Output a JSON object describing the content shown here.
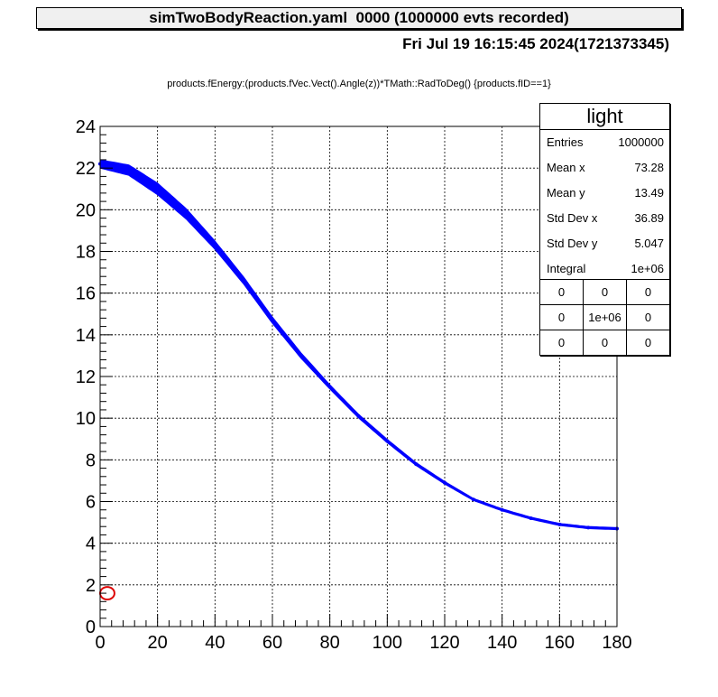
{
  "header": {
    "title": "simTwoBodyReaction.yaml  0000 (1000000 evts recorded)",
    "date": "Fri Jul 19 16:15:45 2024(1721373345)",
    "subtitle": "products.fEnergy:(products.fVec.Vect().Angle(z))*TMath::RadToDeg() {products.fID==1}"
  },
  "stats": {
    "title": "light",
    "rows": [
      {
        "label": "Entries",
        "value": "1000000"
      },
      {
        "label": "Mean x",
        "value": "73.28"
      },
      {
        "label": "Mean y",
        "value": "13.49"
      },
      {
        "label": "Std Dev x",
        "value": "36.89"
      },
      {
        "label": "Std Dev y",
        "value": "5.047"
      },
      {
        "label": "Integral",
        "value": "1e+06"
      }
    ],
    "grid": [
      [
        "0",
        "0",
        "0"
      ],
      [
        "0",
        "1e+06",
        "0"
      ],
      [
        "0",
        "0",
        "0"
      ]
    ]
  },
  "chart_data": {
    "type": "scatter",
    "title": "products.fEnergy:(products.fVec.Vect().Angle(z))*TMath::RadToDeg() {products.fID==1}",
    "xlabel": "",
    "ylabel": "",
    "xlim": [
      0,
      180
    ],
    "ylim": [
      0,
      24
    ],
    "x_ticks": [
      "0",
      "20",
      "40",
      "60",
      "80",
      "100",
      "120",
      "140",
      "160",
      "180"
    ],
    "y_ticks": [
      "0",
      "2",
      "4",
      "6",
      "8",
      "10",
      "12",
      "14",
      "16",
      "18",
      "20",
      "22",
      "24"
    ],
    "grid": true,
    "series": [
      {
        "name": "light",
        "color": "#0000ff",
        "x": [
          0,
          10,
          20,
          30,
          40,
          50,
          60,
          70,
          80,
          90,
          100,
          110,
          120,
          130,
          140,
          150,
          160,
          170,
          180
        ],
        "y": [
          22.2,
          21.9,
          21.0,
          19.8,
          18.3,
          16.6,
          14.7,
          13.0,
          11.5,
          10.1,
          8.9,
          7.8,
          6.9,
          6.1,
          5.6,
          5.2,
          4.9,
          4.75,
          4.7
        ],
        "band_width": [
          0.2,
          0.25,
          0.28,
          0.25,
          0.2,
          0.17,
          0.15,
          0.13,
          0.1,
          0.09,
          0.08,
          0.07,
          0.06,
          0.05,
          0.05,
          0.05,
          0.05,
          0.05,
          0.05
        ]
      },
      {
        "name": "heavy-ellipse",
        "color": "#dd0000",
        "x_center": 2.5,
        "y_center": 1.6,
        "x_radius": 2.5,
        "y_radius": 0.3
      }
    ]
  }
}
